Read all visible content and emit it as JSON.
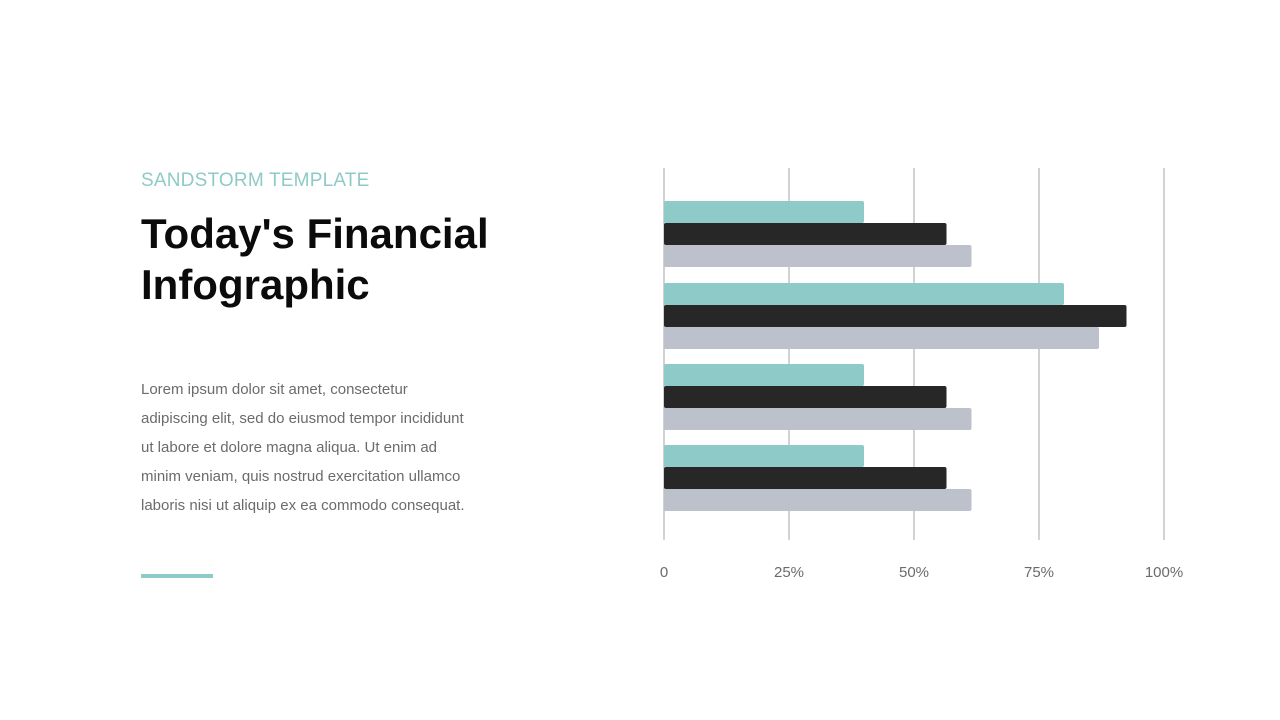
{
  "slide": {
    "eyebrow": "SANDSTORM TEMPLATE",
    "title": "Today's Financial Infographic",
    "body": "Lorem ipsum dolor sit amet, consectetur adipiscing elit, sed do eiusmod tempor incididunt ut labore et dolore magna aliqua. Ut enim ad minim veniam, quis nostrud exercitation ullamco laboris nisi ut aliquip ex ea commodo consequat."
  },
  "colors": {
    "accent": "#8ecac7",
    "dark": "#272727",
    "light": "#bcc1cc",
    "gridline": "#b5b5b5",
    "text_muted": "#6b6b6b"
  },
  "chart_data": {
    "type": "bar",
    "orientation": "horizontal",
    "categories": [
      "",
      "",
      "",
      ""
    ],
    "series": [
      {
        "values": [
          40,
          80,
          40,
          40
        ],
        "color": "#8ecac7"
      },
      {
        "values": [
          56.5,
          92.5,
          56.5,
          56.5
        ],
        "color": "#272727"
      },
      {
        "values": [
          61.5,
          87,
          61.5,
          61.5
        ],
        "color": "#bcc1cc"
      }
    ],
    "xlim": [
      0,
      100
    ],
    "xticks": [
      0,
      25,
      50,
      75,
      100
    ],
    "xtick_labels": [
      "0",
      "25%",
      "50%",
      "75%",
      "100%"
    ],
    "grid": true,
    "legend": "none",
    "title": "",
    "xlabel": "",
    "ylabel": ""
  }
}
